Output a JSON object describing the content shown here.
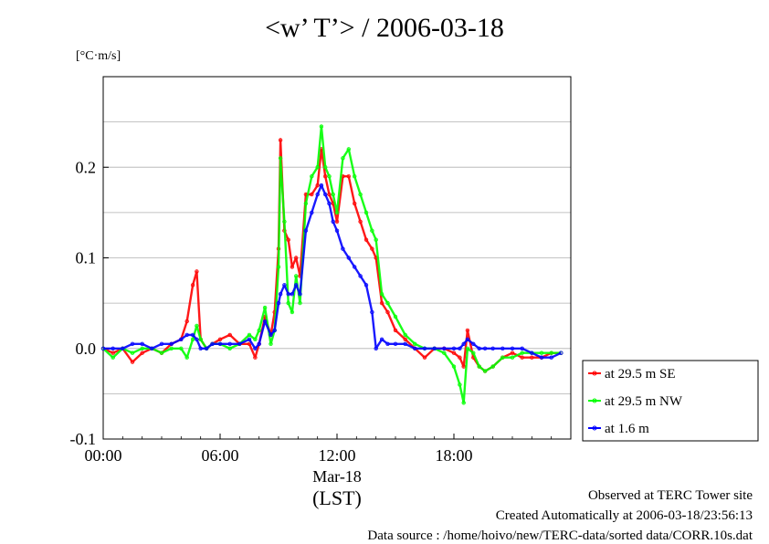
{
  "title": "<w’ T’> / 2006-03-18",
  "footer": {
    "line1": "Observed at TERC Tower site",
    "line2": "Created Automatically at 2006-03-18/23:56:13",
    "line3": "Data source : /home/hoivo/new/TERC-data/sorted  data/CORR.10s.dat"
  },
  "chart_data": {
    "type": "line",
    "title": "<w’ T’> / 2006-03-18",
    "ylabel": "[°C·m/s]",
    "xlabel": "(LST)",
    "x_sublabel": "Mar-18",
    "xlim": [
      0,
      24
    ],
    "ylim": [
      -0.1,
      0.3
    ],
    "x_ticks": [
      {
        "value": 0,
        "label": "00:00"
      },
      {
        "value": 6,
        "label": "06:00"
      },
      {
        "value": 12,
        "label": "12:00"
      },
      {
        "value": 18,
        "label": "18:00"
      }
    ],
    "y_ticks": [
      {
        "value": -0.1,
        "label": "-0.1"
      },
      {
        "value": 0.0,
        "label": "0.0"
      },
      {
        "value": 0.1,
        "label": "0.1"
      },
      {
        "value": 0.2,
        "label": "0.2"
      }
    ],
    "grid": true,
    "legend_placement": "outside right",
    "series": [
      {
        "name": "at 29.5 m SE",
        "color": "#ff0000",
        "x": [
          0,
          0.5,
          1,
          1.5,
          2,
          2.5,
          3,
          3.5,
          4,
          4.3,
          4.6,
          4.8,
          5,
          5.3,
          5.6,
          6,
          6.5,
          7,
          7.5,
          7.8,
          8,
          8.3,
          8.6,
          8.8,
          9,
          9.1,
          9.3,
          9.5,
          9.7,
          9.9,
          10.1,
          10.4,
          10.7,
          11,
          11.2,
          11.4,
          11.6,
          11.8,
          12,
          12.3,
          12.6,
          12.9,
          13.2,
          13.5,
          13.8,
          14,
          14.3,
          14.6,
          15,
          15.5,
          16,
          16.5,
          17,
          17.5,
          18,
          18.3,
          18.5,
          18.7,
          19,
          19.3,
          19.6,
          20,
          20.5,
          21,
          21.5,
          22,
          22.5,
          23,
          23.5
        ],
        "y": [
          0.0,
          -0.005,
          0.0,
          -0.015,
          -0.005,
          0.0,
          -0.005,
          0.005,
          0.01,
          0.03,
          0.07,
          0.085,
          0.01,
          0.0,
          0.005,
          0.01,
          0.015,
          0.005,
          0.005,
          -0.01,
          0.005,
          0.035,
          0.015,
          0.04,
          0.11,
          0.23,
          0.13,
          0.12,
          0.09,
          0.1,
          0.08,
          0.17,
          0.17,
          0.18,
          0.22,
          0.19,
          0.17,
          0.16,
          0.14,
          0.19,
          0.19,
          0.16,
          0.14,
          0.12,
          0.11,
          0.1,
          0.05,
          0.04,
          0.02,
          0.01,
          0.0,
          -0.01,
          0.0,
          0.0,
          -0.005,
          -0.01,
          -0.02,
          0.02,
          -0.01,
          -0.02,
          -0.025,
          -0.02,
          -0.01,
          -0.005,
          -0.01,
          -0.01,
          -0.01,
          -0.005,
          -0.005
        ]
      },
      {
        "name": "at 29.5 m NW",
        "color": "#00ff00",
        "x": [
          0,
          0.5,
          1,
          1.5,
          2,
          2.5,
          3,
          3.5,
          4,
          4.3,
          4.6,
          4.8,
          5,
          5.3,
          5.6,
          6,
          6.5,
          7,
          7.5,
          7.8,
          8,
          8.3,
          8.6,
          8.8,
          9,
          9.1,
          9.3,
          9.5,
          9.7,
          9.9,
          10.1,
          10.4,
          10.7,
          11,
          11.2,
          11.4,
          11.6,
          11.8,
          12,
          12.3,
          12.6,
          12.9,
          13.2,
          13.5,
          13.8,
          14,
          14.3,
          14.6,
          15,
          15.5,
          16,
          16.5,
          17,
          17.5,
          18,
          18.3,
          18.5,
          18.7,
          19,
          19.3,
          19.6,
          20,
          20.5,
          21,
          21.5,
          22,
          22.5,
          23,
          23.5
        ],
        "y": [
          0.0,
          -0.01,
          0.0,
          -0.005,
          0.0,
          0.0,
          -0.005,
          0.0,
          0.0,
          -0.01,
          0.01,
          0.025,
          0.01,
          0.0,
          0.005,
          0.005,
          0.0,
          0.005,
          0.015,
          0.01,
          0.02,
          0.045,
          0.005,
          0.02,
          0.09,
          0.21,
          0.14,
          0.05,
          0.04,
          0.08,
          0.05,
          0.16,
          0.19,
          0.2,
          0.245,
          0.2,
          0.19,
          0.17,
          0.15,
          0.21,
          0.22,
          0.19,
          0.17,
          0.15,
          0.13,
          0.12,
          0.06,
          0.05,
          0.035,
          0.015,
          0.005,
          0.0,
          0.0,
          -0.005,
          -0.02,
          -0.04,
          -0.06,
          0.0,
          -0.005,
          -0.02,
          -0.025,
          -0.02,
          -0.01,
          -0.01,
          -0.005,
          -0.005,
          -0.005,
          -0.005,
          -0.005
        ]
      },
      {
        "name": "at 1.6 m",
        "color": "#0000ff",
        "x": [
          0,
          0.5,
          1,
          1.5,
          2,
          2.5,
          3,
          3.5,
          4,
          4.3,
          4.6,
          4.8,
          5,
          5.3,
          5.6,
          6,
          6.5,
          7,
          7.5,
          7.8,
          8,
          8.3,
          8.6,
          8.8,
          9,
          9.1,
          9.3,
          9.5,
          9.7,
          9.9,
          10.1,
          10.4,
          10.7,
          11,
          11.2,
          11.4,
          11.6,
          11.8,
          12,
          12.3,
          12.6,
          12.9,
          13.2,
          13.5,
          13.8,
          14,
          14.3,
          14.6,
          15,
          15.5,
          16,
          16.5,
          17,
          17.5,
          18,
          18.3,
          18.5,
          18.7,
          19,
          19.3,
          19.6,
          20,
          20.5,
          21,
          21.5,
          22,
          22.5,
          23,
          23.5
        ],
        "y": [
          0.0,
          0.0,
          0.0,
          0.005,
          0.005,
          0.0,
          0.005,
          0.005,
          0.01,
          0.015,
          0.015,
          0.01,
          0.0,
          0.0,
          0.005,
          0.005,
          0.005,
          0.005,
          0.01,
          0.0,
          0.005,
          0.03,
          0.015,
          0.02,
          0.05,
          0.06,
          0.07,
          0.06,
          0.06,
          0.07,
          0.06,
          0.13,
          0.15,
          0.17,
          0.18,
          0.17,
          0.16,
          0.14,
          0.13,
          0.11,
          0.1,
          0.09,
          0.08,
          0.07,
          0.04,
          0.0,
          0.01,
          0.005,
          0.005,
          0.005,
          0.0,
          0.0,
          0.0,
          0.0,
          0.0,
          0.0,
          0.005,
          0.01,
          0.005,
          0.0,
          0.0,
          0.0,
          0.0,
          0.0,
          0.0,
          -0.005,
          -0.01,
          -0.01,
          -0.005
        ]
      }
    ]
  }
}
